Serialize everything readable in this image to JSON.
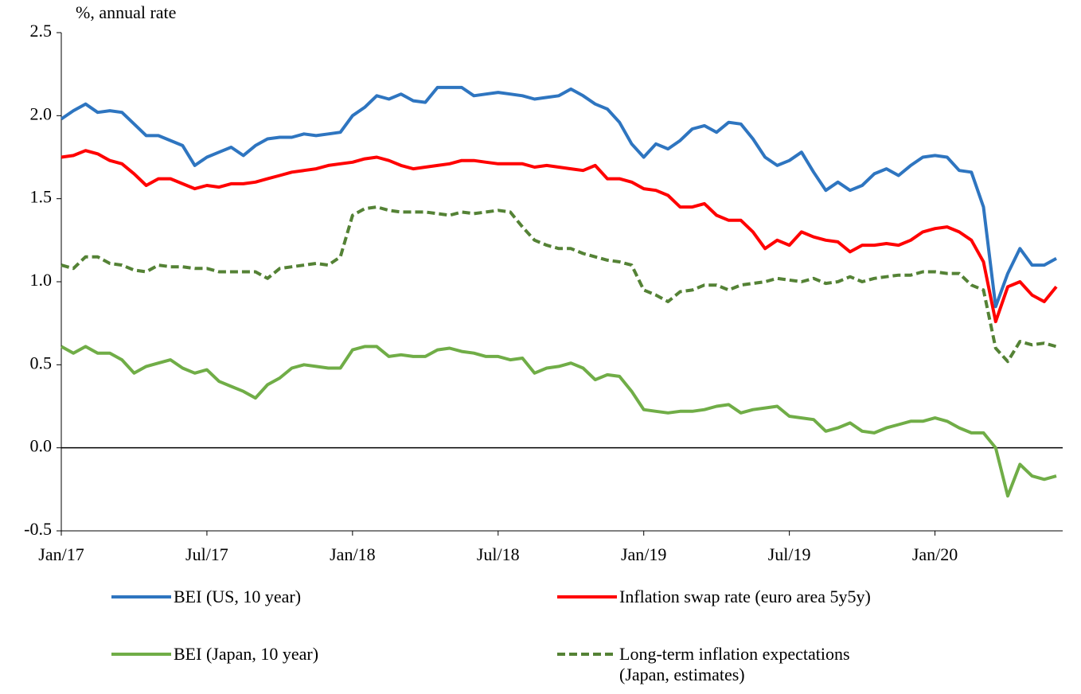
{
  "chart_data": {
    "type": "line",
    "ylabel": "%, annual rate",
    "categories": [
      "Jan/17",
      null,
      null,
      null,
      null,
      null,
      null,
      null,
      null,
      null,
      null,
      null,
      "Jul/17",
      null,
      null,
      null,
      null,
      null,
      null,
      null,
      null,
      null,
      null,
      null,
      "Jan/18",
      null,
      null,
      null,
      null,
      null,
      null,
      null,
      null,
      null,
      null,
      null,
      "Jul/18",
      null,
      null,
      null,
      null,
      null,
      null,
      null,
      null,
      null,
      null,
      null,
      "Jan/19",
      null,
      null,
      null,
      null,
      null,
      null,
      null,
      null,
      null,
      null,
      null,
      "Jul/19",
      null,
      null,
      null,
      null,
      null,
      null,
      null,
      null,
      null,
      null,
      null,
      "Jan/20",
      null,
      null,
      null,
      null,
      null,
      null,
      null,
      null,
      null,
      null
    ],
    "ylim": [
      -0.5,
      2.5
    ],
    "yticks": [
      -0.5,
      {
        "value": 0,
        "label": "0.0"
      },
      0.5,
      {
        "value": 1,
        "label": "1.0"
      },
      1.5,
      {
        "value": 2,
        "label": "2.0"
      },
      2.5
    ],
    "zero_line": true,
    "legend": "bottom",
    "series": [
      {
        "name": "BEI (US, 10 year)",
        "color": "#2e75c0",
        "dashed": false,
        "values": [
          1.98,
          2.03,
          2.07,
          2.02,
          2.03,
          2.02,
          1.95,
          1.88,
          1.88,
          1.85,
          1.82,
          1.7,
          1.75,
          1.78,
          1.81,
          1.76,
          1.82,
          1.86,
          1.87,
          1.87,
          1.89,
          1.88,
          1.89,
          1.9,
          2.0,
          2.05,
          2.12,
          2.1,
          2.13,
          2.09,
          2.08,
          2.17,
          2.17,
          2.17,
          2.12,
          2.13,
          2.14,
          2.13,
          2.12,
          2.1,
          2.11,
          2.12,
          2.16,
          2.12,
          2.07,
          2.04,
          1.96,
          1.83,
          1.75,
          1.83,
          1.8,
          1.85,
          1.92,
          1.94,
          1.9,
          1.96,
          1.95,
          1.86,
          1.75,
          1.7,
          1.73,
          1.78,
          1.66,
          1.55,
          1.6,
          1.55,
          1.58,
          1.65,
          1.68,
          1.64,
          1.7,
          1.75,
          1.76,
          1.75,
          1.67,
          1.66,
          1.45,
          0.85,
          1.05,
          1.2,
          1.1,
          1.1,
          1.14
        ]
      },
      {
        "name": "Inflation swap rate (euro area 5y5y)",
        "color": "#ff0000",
        "dashed": false,
        "values": [
          1.75,
          1.76,
          1.79,
          1.77,
          1.73,
          1.71,
          1.65,
          1.58,
          1.62,
          1.62,
          1.59,
          1.56,
          1.58,
          1.57,
          1.59,
          1.59,
          1.6,
          1.62,
          1.64,
          1.66,
          1.67,
          1.68,
          1.7,
          1.71,
          1.72,
          1.74,
          1.75,
          1.73,
          1.7,
          1.68,
          1.69,
          1.7,
          1.71,
          1.73,
          1.73,
          1.72,
          1.71,
          1.71,
          1.71,
          1.69,
          1.7,
          1.69,
          1.68,
          1.67,
          1.7,
          1.62,
          1.62,
          1.6,
          1.56,
          1.55,
          1.52,
          1.45,
          1.45,
          1.47,
          1.4,
          1.37,
          1.37,
          1.3,
          1.2,
          1.25,
          1.22,
          1.3,
          1.27,
          1.25,
          1.24,
          1.18,
          1.22,
          1.22,
          1.23,
          1.22,
          1.25,
          1.3,
          1.32,
          1.33,
          1.3,
          1.25,
          1.12,
          0.76,
          0.97,
          1.0,
          0.92,
          0.88,
          0.97
        ]
      },
      {
        "name": "BEI (Japan, 10 year)",
        "color": "#70ad47",
        "dashed": false,
        "values": [
          0.61,
          0.57,
          0.61,
          0.57,
          0.57,
          0.53,
          0.45,
          0.49,
          0.51,
          0.53,
          0.48,
          0.45,
          0.47,
          0.4,
          0.37,
          0.34,
          0.3,
          0.38,
          0.42,
          0.48,
          0.5,
          0.49,
          0.48,
          0.48,
          0.59,
          0.61,
          0.61,
          0.55,
          0.56,
          0.55,
          0.55,
          0.59,
          0.6,
          0.58,
          0.57,
          0.55,
          0.55,
          0.53,
          0.54,
          0.45,
          0.48,
          0.49,
          0.51,
          0.48,
          0.41,
          0.44,
          0.43,
          0.34,
          0.23,
          0.22,
          0.21,
          0.22,
          0.22,
          0.23,
          0.25,
          0.26,
          0.21,
          0.23,
          0.24,
          0.25,
          0.19,
          0.18,
          0.17,
          0.1,
          0.12,
          0.15,
          0.1,
          0.09,
          0.12,
          0.14,
          0.16,
          0.16,
          0.18,
          0.16,
          0.12,
          0.09,
          0.09,
          0.0,
          -0.29,
          -0.1,
          -0.17,
          -0.19,
          -0.17
        ]
      },
      {
        "name": "Long-term inflation expectations (Japan, estimates)",
        "color": "#548235",
        "dashed": true,
        "values": [
          1.1,
          1.08,
          1.15,
          1.15,
          1.11,
          1.1,
          1.07,
          1.06,
          1.1,
          1.09,
          1.09,
          1.08,
          1.08,
          1.06,
          1.06,
          1.06,
          1.06,
          1.02,
          1.08,
          1.09,
          1.1,
          1.11,
          1.1,
          1.15,
          1.4,
          1.44,
          1.45,
          1.43,
          1.42,
          1.42,
          1.42,
          1.41,
          1.4,
          1.42,
          1.41,
          1.42,
          1.43,
          1.42,
          1.33,
          1.25,
          1.22,
          1.2,
          1.2,
          1.17,
          1.15,
          1.13,
          1.12,
          1.1,
          0.95,
          0.92,
          0.88,
          0.94,
          0.95,
          0.98,
          0.98,
          0.95,
          0.98,
          0.99,
          1.0,
          1.02,
          1.01,
          1.0,
          1.02,
          0.99,
          1.0,
          1.03,
          1.0,
          1.02,
          1.03,
          1.04,
          1.04,
          1.06,
          1.06,
          1.05,
          1.05,
          0.98,
          0.95,
          0.6,
          0.52,
          0.64,
          0.62,
          0.63,
          0.61
        ]
      }
    ]
  }
}
